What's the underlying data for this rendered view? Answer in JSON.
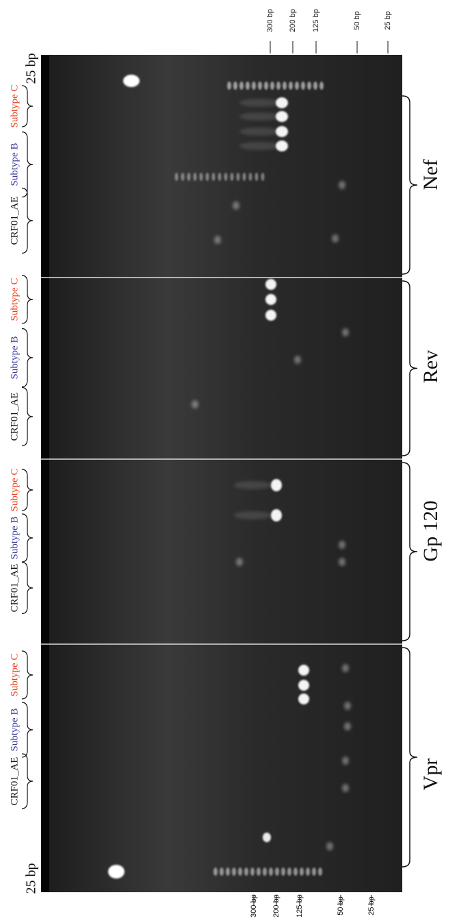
{
  "ladder_labels": [
    "25 bp",
    "25 bp"
  ],
  "marker_top": [
    "300 bp",
    "200 bp",
    "125 bp",
    "50 bp",
    "25 bp"
  ],
  "marker_bottom": [
    "300 bp",
    "200 bp",
    "125 bp",
    "50 bp",
    "25 bp"
  ],
  "panels": [
    {
      "gene": "Nef",
      "lanes": [
        "Subtype C",
        "Subtype B",
        "CRF01_AE"
      ]
    },
    {
      "gene": "Rev",
      "lanes": [
        "Subtype C",
        "Subtype B",
        "CRF01_AE"
      ]
    },
    {
      "gene": "Gp 120",
      "lanes": [
        "Subtype C",
        "Subtype B",
        "CRF01_AE"
      ]
    },
    {
      "gene": "Vpr",
      "lanes": [
        "Subtype C",
        "Subtype B",
        "CRF01_AE"
      ]
    }
  ]
}
